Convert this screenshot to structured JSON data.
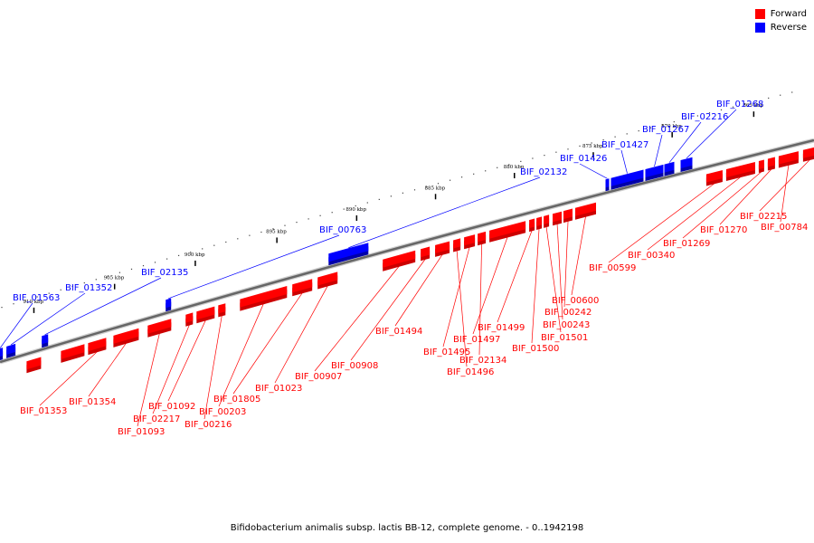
{
  "caption": "Bifidobacterium animalis subsp. lactis BB-12, complete genome. - 0..1942198",
  "legend": [
    {
      "label": "Forward",
      "color": "#ff0000"
    },
    {
      "label": "Reverse",
      "color": "#0000ff"
    }
  ],
  "colors": {
    "forward": "#ff0000",
    "reverse": "#0000ff",
    "backbone": "#666666"
  },
  "ticks": [
    {
      "label": "865 kbp"
    },
    {
      "label": "870 kbp"
    },
    {
      "label": "875 kbp"
    },
    {
      "label": "880 kbp"
    },
    {
      "label": "885 kbp"
    },
    {
      "label": "890 kbp"
    },
    {
      "label": "895 kbp"
    },
    {
      "label": "900 kbp"
    },
    {
      "label": "905 kbp"
    },
    {
      "label": "910 kbp"
    }
  ],
  "reverse_labels": [
    "BIF_01268",
    "BIF_02216",
    "BIF_01267",
    "BIF_01427",
    "BIF_01426",
    "BIF_02132",
    "BIF_00763",
    "BIF_02135",
    "BIF_01352",
    "BIF_01563"
  ],
  "forward_labels": [
    "BIF_02215",
    "BIF_00784",
    "BIF_01270",
    "BIF_01269",
    "BIF_00340",
    "BIF_00599",
    "BIF_00600",
    "BIF_00242",
    "BIF_00243",
    "BIF_01501",
    "BIF_01500",
    "BIF_01499",
    "BIF_01497",
    "BIF_02134",
    "BIF_01495",
    "BIF_01496",
    "BIF_01494",
    "BIF_00908",
    "BIF_00907",
    "BIF_01023",
    "BIF_01805",
    "BIF_00203",
    "BIF_00216",
    "BIF_01092",
    "BIF_02217",
    "BIF_01093",
    "BIF_01354",
    "BIF_01353"
  ]
}
